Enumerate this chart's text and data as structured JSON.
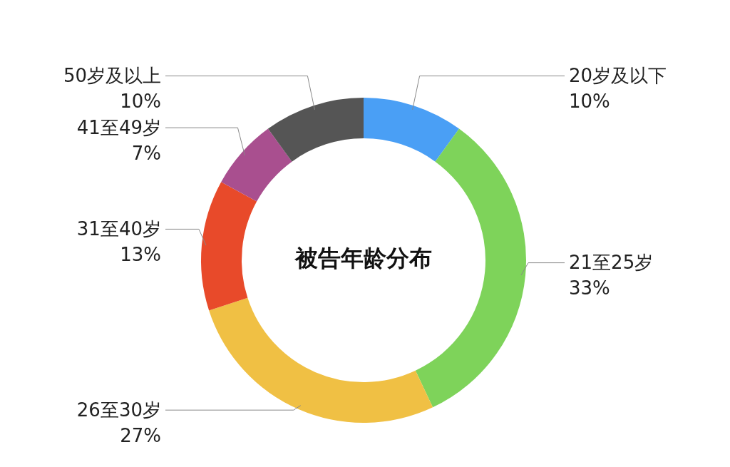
{
  "chart_data": {
    "type": "donut",
    "title": "被告年龄分布",
    "categories": [
      "20岁及以下",
      "21至25岁",
      "26至30岁",
      "31至40岁",
      "41至49岁",
      "50岁及以上"
    ],
    "values": [
      10,
      33,
      27,
      13,
      7,
      10
    ],
    "value_labels": [
      "10%",
      "33%",
      "27%",
      "13%",
      "7%",
      "10%"
    ],
    "colors": [
      "#4a9ff5",
      "#7ed35a",
      "#f0c044",
      "#e84a2a",
      "#a94f8f",
      "#555555"
    ],
    "legend": false
  }
}
